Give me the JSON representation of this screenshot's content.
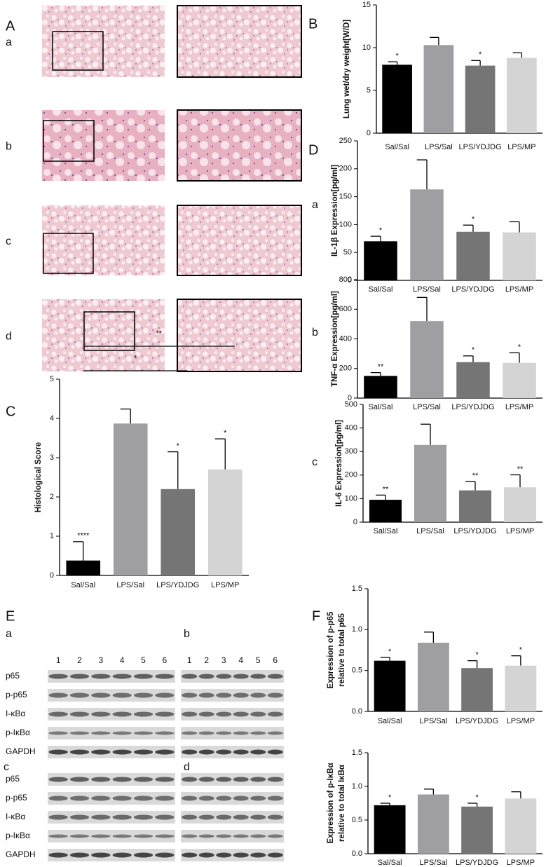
{
  "panels": [
    "A",
    "B",
    "C",
    "D",
    "E",
    "F"
  ],
  "histology_rows": [
    "a",
    "b",
    "c",
    "d"
  ],
  "cytokine_rows": [
    "a",
    "b",
    "c"
  ],
  "blots": {
    "panels": [
      "a",
      "b",
      "c",
      "d"
    ],
    "lanes": [
      "1",
      "2",
      "3",
      "4",
      "5",
      "6"
    ],
    "proteins": [
      "p65",
      "p-p65",
      "I-κBα",
      "p-IκBα",
      "GAPDH"
    ]
  },
  "chart_data": [
    {
      "type": "bar",
      "ylabel": [
        "Lung wet/dry weight[W/D]"
      ],
      "categories": [
        "Sal/Sal",
        "LPS/Sal",
        "LPS/YDJDG",
        "LPS/MP"
      ],
      "values": [
        8.0,
        10.3,
        7.9,
        8.8
      ],
      "errors": [
        0.35,
        0.9,
        0.6,
        0.6
      ],
      "significance": [
        "*",
        null,
        "*",
        null
      ],
      "colors": [
        "#000000",
        "#9e9ea3",
        "#757575",
        "#d4d4d4"
      ],
      "ylim": [
        0,
        15
      ],
      "yticks": [
        0,
        5,
        10,
        15
      ]
    },
    {
      "type": "bar",
      "ylabel": [
        "IL-1β Expression[pg/ml]"
      ],
      "categories": [
        "Sal/Sal",
        "LPS/Sal",
        "LPS/YDJDG",
        "LPS/MP"
      ],
      "values": [
        70,
        163,
        87,
        86
      ],
      "errors": [
        9,
        53,
        12,
        19
      ],
      "significance": [
        "*",
        null,
        "*",
        null
      ],
      "colors": [
        "#000000",
        "#9e9ea3",
        "#757575",
        "#d4d4d4"
      ],
      "ylim": [
        0,
        250
      ],
      "yticks": [
        0,
        50,
        100,
        150,
        200,
        250
      ]
    },
    {
      "type": "bar",
      "ylabel": [
        "TNF-α Expression[pg/ml]"
      ],
      "categories": [
        "Sal/Sal",
        "LPS/Sal",
        "LPS/YDJDG",
        "LPS/MP"
      ],
      "values": [
        150,
        520,
        243,
        238
      ],
      "errors": [
        22,
        160,
        42,
        68
      ],
      "significance": [
        "**",
        null,
        "*",
        "*"
      ],
      "colors": [
        "#000000",
        "#9e9ea3",
        "#757575",
        "#d4d4d4"
      ],
      "ylim": [
        0,
        800
      ],
      "yticks": [
        0,
        200,
        400,
        600,
        800
      ]
    },
    {
      "type": "bar",
      "ylabel": [
        "IL-6 Expression[pg/ml]"
      ],
      "categories": [
        "Sal/Sal",
        "LPS/Sal",
        "LPS/YDJDG",
        "LPS/MP"
      ],
      "values": [
        95,
        328,
        135,
        148
      ],
      "errors": [
        20,
        88,
        38,
        53
      ],
      "significance": [
        "**",
        null,
        "**",
        "**"
      ],
      "colors": [
        "#000000",
        "#9e9ea3",
        "#757575",
        "#d4d4d4"
      ],
      "ylim": [
        0,
        500
      ],
      "yticks": [
        0,
        100,
        200,
        300,
        400,
        500
      ]
    },
    {
      "type": "bar",
      "ylabel": [
        "Histological Score"
      ],
      "categories": [
        "Sal/Sal",
        "LPS/Sal",
        "LPS/YDJDG",
        "LPS/MP"
      ],
      "values": [
        0.38,
        3.87,
        2.2,
        2.7
      ],
      "errors": [
        0.48,
        0.37,
        0.95,
        0.78
      ],
      "significance": [
        "****",
        null,
        "*",
        "*"
      ],
      "colors": [
        "#000000",
        "#9e9ea3",
        "#757575",
        "#d4d4d4"
      ],
      "ylim": [
        0,
        5
      ],
      "yticks": [
        0,
        1,
        2,
        3,
        4,
        5
      ],
      "comparisons": [
        {
          "from": "Sal/Sal",
          "to": "LPS/MP",
          "label": "**"
        },
        {
          "from": "Sal/Sal",
          "to": "LPS/YDJDG",
          "label": "*"
        }
      ]
    },
    {
      "type": "bar",
      "ylabel": [
        "Expression of p-p65",
        "relative to total p65"
      ],
      "categories": [
        "Sal/Sal",
        "LPS/Sal",
        "LPS/YDJDG",
        "LPS/MP"
      ],
      "values": [
        0.62,
        0.84,
        0.53,
        0.56
      ],
      "errors": [
        0.04,
        0.13,
        0.09,
        0.12
      ],
      "significance": [
        "*",
        null,
        "*",
        "*"
      ],
      "colors": [
        "#000000",
        "#9e9ea3",
        "#757575",
        "#d4d4d4"
      ],
      "ylim": [
        0,
        1.5
      ],
      "yticks": [
        {
          "value": 0,
          "label": "0.0"
        },
        0.5,
        {
          "value": 1,
          "label": "1.0"
        },
        1.5
      ]
    },
    {
      "type": "bar",
      "ylabel": [
        "Expression of p-IκBα",
        "relative to total IκBα"
      ],
      "categories": [
        "Sal/Sal",
        "LPS/Sal",
        "LPS/YDJDG",
        "LPS/MP"
      ],
      "values": [
        0.72,
        0.88,
        0.7,
        0.82
      ],
      "errors": [
        0.03,
        0.08,
        0.05,
        0.1
      ],
      "significance": [
        "*",
        null,
        "*",
        null
      ],
      "colors": [
        "#000000",
        "#9e9ea3",
        "#757575",
        "#d4d4d4"
      ],
      "ylim": [
        0,
        1.5
      ],
      "yticks": [
        {
          "value": 0,
          "label": "0.0"
        },
        0.5,
        {
          "value": 1,
          "label": "1.0"
        },
        1.5
      ]
    }
  ]
}
